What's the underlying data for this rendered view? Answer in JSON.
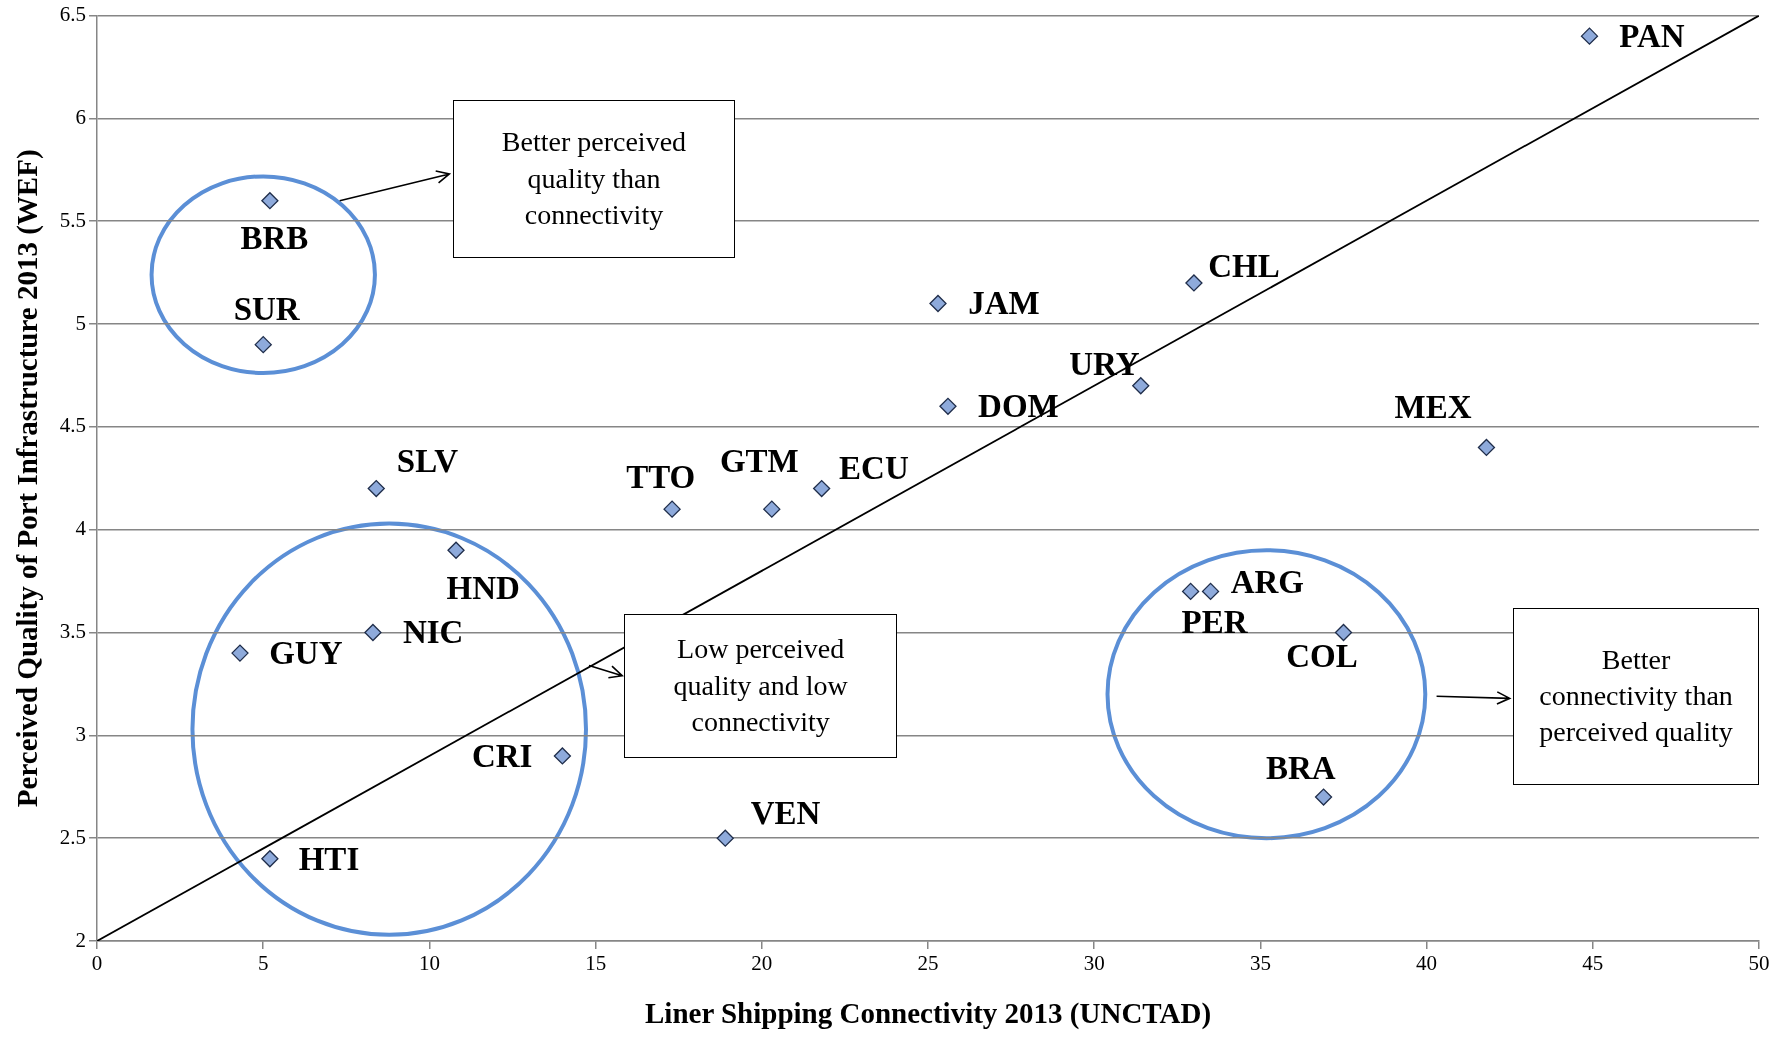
{
  "chart_data": {
    "type": "scatter",
    "xlabel": "Liner Shipping Connectivity 2013 (UNCTAD)",
    "ylabel": "Perceived Quality of Port Infrastructure 2013 (WEF)",
    "xlim": [
      0,
      50
    ],
    "xticks": [
      0,
      5,
      10,
      15,
      20,
      25,
      30,
      35,
      40,
      45,
      50
    ],
    "ylim": [
      2,
      6.5
    ],
    "yticks": [
      2,
      2.5,
      3,
      3.5,
      4,
      4.5,
      5,
      5.5,
      6,
      6.5
    ],
    "grid": "y",
    "marker": "diamond",
    "annotations": [
      "Better perceived quality than connectivity",
      "Low perceived quality and low connectivity",
      "Better connectivity than perceived quality"
    ],
    "series": [
      {
        "type": "scatter",
        "color": "#8eaadb",
        "x": [
          5.2,
          5.0,
          8.4,
          10.8,
          8.3,
          4.3,
          14.0,
          5.2,
          17.3,
          20.3,
          21.8,
          18.9,
          25.3,
          25.6,
          31.4,
          33.0,
          41.8,
          44.9,
          32.9,
          33.5,
          37.5,
          36.9
        ],
        "values": [
          5.6,
          4.9,
          4.2,
          3.9,
          3.5,
          3.4,
          2.9,
          2.4,
          4.1,
          4.1,
          4.2,
          2.5,
          5.1,
          4.6,
          4.7,
          5.2,
          4.4,
          6.4,
          3.7,
          3.7,
          3.5,
          2.7
        ],
        "value_labels": [
          "BRB",
          "SUR",
          "SLV",
          "HND",
          "NIC",
          "GUY",
          "CRI",
          "HTI",
          "TTO",
          "GTM",
          "ECU",
          "VEN",
          "JAM",
          "DOM",
          "URY",
          "CHL",
          "MEX",
          "PAN",
          "PER",
          "ARG",
          "COL",
          "BRA"
        ]
      },
      {
        "type": "line",
        "color": "#000000",
        "x": [
          0,
          50
        ],
        "values": [
          2,
          6.5
        ],
        "marker": "none"
      }
    ]
  }
}
